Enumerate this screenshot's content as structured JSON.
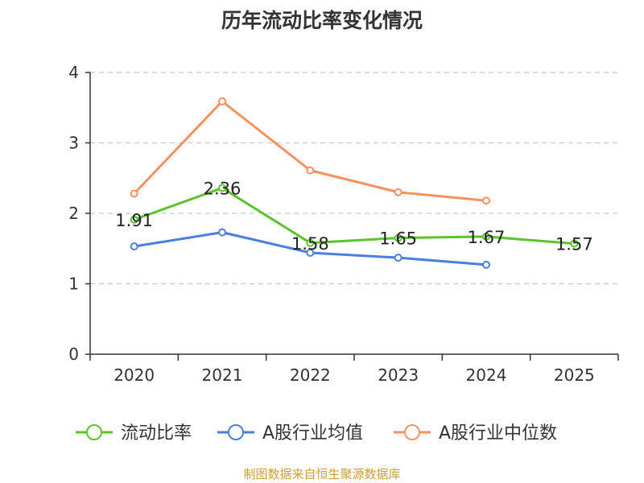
{
  "title": "历年流动比率变化情况",
  "source": "制图数据来自恒生聚源数据库",
  "chart_data": {
    "type": "line",
    "x": [
      "2020",
      "2021",
      "2022",
      "2023",
      "2024",
      "2025"
    ],
    "ylim": [
      0,
      4
    ],
    "yticks": [
      0,
      1,
      2,
      3,
      4
    ],
    "grid": true,
    "legend_position": "bottom",
    "series": [
      {
        "name": "流动比率",
        "color": "#5bc32b",
        "values": [
          1.91,
          2.36,
          1.58,
          1.65,
          1.67,
          1.57
        ],
        "labels": [
          "1.91",
          "2.36",
          "1.58",
          "1.65",
          "1.67",
          "1.57"
        ]
      },
      {
        "name": "A股行业均值",
        "color": "#4a7fdb",
        "values": [
          1.53,
          1.73,
          1.44,
          1.37,
          1.27,
          null
        ]
      },
      {
        "name": "A股行业中位数",
        "color": "#f7915d",
        "values": [
          2.28,
          3.59,
          2.61,
          2.3,
          2.18,
          null
        ]
      }
    ]
  }
}
